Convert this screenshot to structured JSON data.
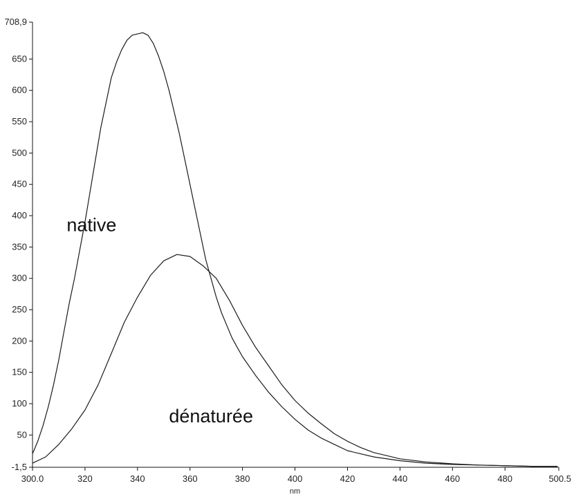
{
  "chart_data": {
    "type": "line",
    "xlabel": "nm",
    "ylabel": "",
    "xlim": [
      300.0,
      500.5
    ],
    "ylim": [
      -1.5,
      708.9
    ],
    "x_ticks": [
      300.0,
      320,
      340,
      360,
      380,
      400,
      420,
      440,
      460,
      480,
      500.5
    ],
    "x_tick_labels": [
      "300.0",
      "320",
      "340",
      "360",
      "380",
      "400",
      "420",
      "440",
      "460",
      "480",
      "500.5"
    ],
    "y_ticks": [
      -1.5,
      50,
      100,
      150,
      200,
      250,
      300,
      350,
      400,
      450,
      500,
      550,
      600,
      650,
      708.9
    ],
    "y_tick_labels": [
      "-1,5",
      "50",
      "100",
      "150",
      "200",
      "250",
      "300",
      "350",
      "400",
      "450",
      "500",
      "550",
      "600",
      "650",
      "708,9"
    ],
    "grid": false,
    "series": [
      {
        "name": "native",
        "color": "#1a1a1a",
        "x": [
          300,
          302,
          304,
          306,
          308,
          310,
          312,
          314,
          316,
          318,
          320,
          322,
          324,
          326,
          328,
          330,
          332,
          334,
          336,
          338,
          340,
          342,
          344,
          346,
          348,
          350,
          352,
          354,
          356,
          358,
          360,
          362,
          364,
          366,
          368,
          370,
          372,
          374,
          376,
          378,
          380,
          385,
          390,
          395,
          400,
          405,
          410,
          415,
          420,
          430,
          440,
          450,
          460,
          470,
          480,
          490,
          500
        ],
        "y": [
          20,
          40,
          65,
          95,
          130,
          170,
          215,
          260,
          300,
          345,
          390,
          440,
          490,
          540,
          580,
          620,
          645,
          665,
          680,
          688,
          690,
          692,
          688,
          675,
          655,
          630,
          600,
          565,
          530,
          490,
          450,
          410,
          370,
          330,
          300,
          270,
          245,
          225,
          205,
          190,
          175,
          145,
          118,
          95,
          75,
          58,
          45,
          35,
          25,
          15,
          9,
          5,
          3,
          2,
          1,
          0,
          0
        ]
      },
      {
        "name": "dénaturée",
        "color": "#1a1a1a",
        "x": [
          300,
          305,
          310,
          315,
          320,
          325,
          330,
          335,
          340,
          345,
          350,
          355,
          360,
          365,
          370,
          375,
          380,
          385,
          390,
          395,
          400,
          405,
          410,
          415,
          420,
          425,
          430,
          435,
          440,
          450,
          460,
          470,
          480,
          490,
          500
        ],
        "y": [
          5,
          15,
          35,
          60,
          90,
          130,
          180,
          230,
          270,
          305,
          328,
          338,
          335,
          320,
          300,
          265,
          225,
          190,
          160,
          130,
          105,
          85,
          68,
          52,
          40,
          30,
          22,
          17,
          12,
          7,
          4,
          2,
          1,
          0,
          0
        ]
      }
    ],
    "annotations": [
      "native",
      "dénaturée"
    ]
  }
}
